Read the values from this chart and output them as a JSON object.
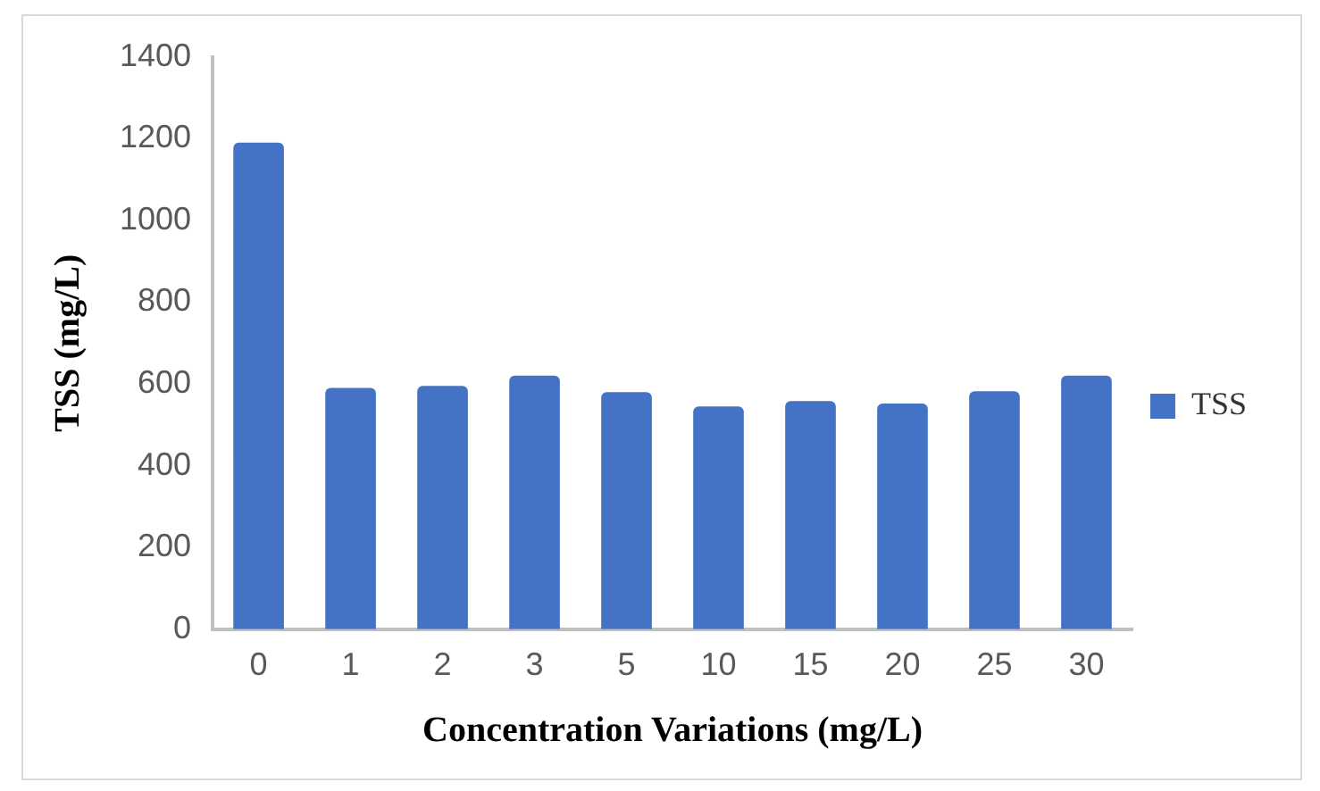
{
  "chart_data": {
    "type": "bar",
    "xlabel": "Concentration Variations (mg/L)",
    "ylabel": "TSS (mg/L)",
    "categories": [
      "0",
      "1",
      "2",
      "3",
      "5",
      "10",
      "15",
      "20",
      "25",
      "30"
    ],
    "series": [
      {
        "name": "TSS",
        "color": "#4472c4",
        "values": [
          1190,
          590,
          595,
          620,
          580,
          545,
          558,
          552,
          582,
          620
        ]
      }
    ],
    "ylim": [
      0,
      1400
    ],
    "yticks": [
      0,
      200,
      400,
      600,
      800,
      1000,
      1200,
      1400
    ],
    "grid": false,
    "legend": "right"
  }
}
